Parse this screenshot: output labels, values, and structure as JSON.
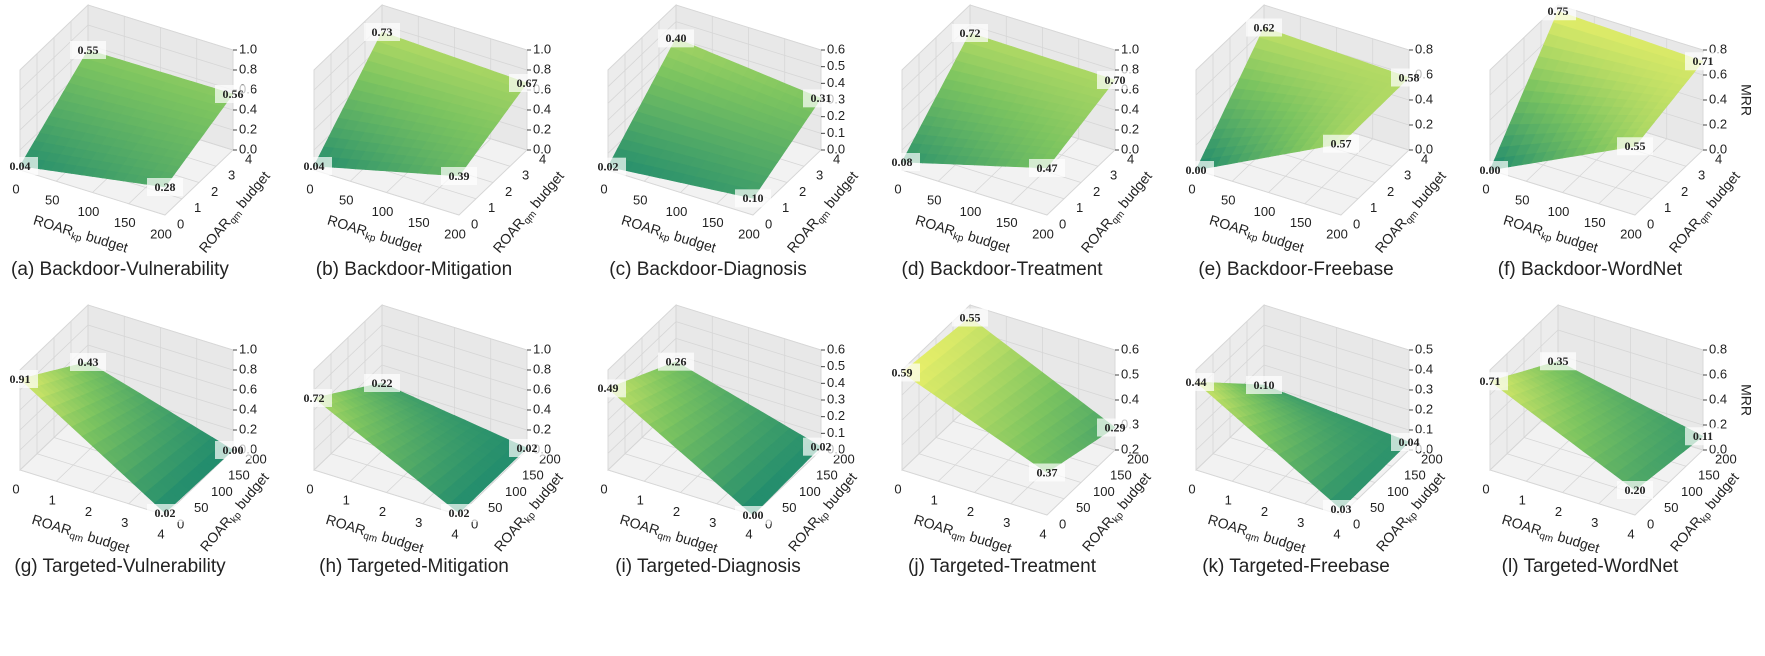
{
  "chart_data": [
    {
      "type": "surface",
      "caption": "(a) Backdoor-Vulnerability",
      "x_label": {
        "main": "ROAR",
        "sub": "kp",
        "rest": "budget"
      },
      "y_label": {
        "main": "ROAR",
        "sub": "qm",
        "rest": "budget"
      },
      "xlim": [
        0,
        200
      ],
      "xticks": [
        0,
        50,
        100,
        150,
        200
      ],
      "ylim": [
        0,
        4
      ],
      "yticks": [
        0,
        1,
        2,
        3,
        4
      ],
      "zlim": [
        0,
        1
      ],
      "zticks": [
        {
          "value": 0,
          "label": "0.0"
        },
        {
          "value": 0.2,
          "label": "0.2"
        },
        {
          "value": 0.4,
          "label": "0.4"
        },
        {
          "value": 0.6,
          "label": "0.6"
        },
        {
          "value": 0.8,
          "label": "0.8"
        },
        {
          "value": 1,
          "label": "1.0"
        }
      ],
      "values": [
        0.04,
        0.55,
        0.56,
        0.28
      ],
      "value_labels": [
        "0.04",
        "0.55",
        "0.56",
        "0.28"
      ]
    },
    {
      "type": "surface",
      "caption": "(b) Backdoor-Mitigation",
      "x_label": {
        "main": "ROAR",
        "sub": "kp",
        "rest": "budget"
      },
      "y_label": {
        "main": "ROAR",
        "sub": "qm",
        "rest": "budget"
      },
      "xlim": [
        0,
        200
      ],
      "xticks": [
        0,
        50,
        100,
        150,
        200
      ],
      "ylim": [
        0,
        4
      ],
      "yticks": [
        0,
        1,
        2,
        3,
        4
      ],
      "zlim": [
        0,
        1
      ],
      "zticks": [
        {
          "value": 0,
          "label": "0.0"
        },
        {
          "value": 0.2,
          "label": "0.2"
        },
        {
          "value": 0.4,
          "label": "0.4"
        },
        {
          "value": 0.6,
          "label": "0.6"
        },
        {
          "value": 0.8,
          "label": "0.8"
        },
        {
          "value": 1,
          "label": "1.0"
        }
      ],
      "values": [
        0.04,
        0.73,
        0.67,
        0.39
      ],
      "value_labels": [
        "0.04",
        "0.73",
        "0.67",
        "0.39"
      ]
    },
    {
      "type": "surface",
      "caption": "(c) Backdoor-Diagnosis",
      "x_label": {
        "main": "ROAR",
        "sub": "kp",
        "rest": "budget"
      },
      "y_label": {
        "main": "ROAR",
        "sub": "qm",
        "rest": "budget"
      },
      "xlim": [
        0,
        200
      ],
      "xticks": [
        0,
        50,
        100,
        150,
        200
      ],
      "ylim": [
        0,
        4
      ],
      "yticks": [
        0,
        1,
        2,
        3,
        4
      ],
      "zlim": [
        0,
        0.6
      ],
      "zticks": [
        {
          "value": 0,
          "label": "0.0"
        },
        {
          "value": 0.1,
          "label": "0.1"
        },
        {
          "value": 0.2,
          "label": "0.2"
        },
        {
          "value": 0.3,
          "label": "0.3"
        },
        {
          "value": 0.4,
          "label": "0.4"
        },
        {
          "value": 0.5,
          "label": "0.5"
        },
        {
          "value": 0.6,
          "label": "0.6"
        }
      ],
      "values": [
        0.02,
        0.4,
        0.31,
        0.1
      ],
      "value_labels": [
        "0.02",
        "0.40",
        "0.31",
        "0.10"
      ]
    },
    {
      "type": "surface",
      "caption": "(d) Backdoor-Treatment",
      "x_label": {
        "main": "ROAR",
        "sub": "kp",
        "rest": "budget"
      },
      "y_label": {
        "main": "ROAR",
        "sub": "qm",
        "rest": "budget"
      },
      "xlim": [
        0,
        200
      ],
      "xticks": [
        0,
        50,
        100,
        150,
        200
      ],
      "ylim": [
        0,
        4
      ],
      "yticks": [
        0,
        1,
        2,
        3,
        4
      ],
      "zlim": [
        0,
        1
      ],
      "zticks": [
        {
          "value": 0,
          "label": "0.0"
        },
        {
          "value": 0.2,
          "label": "0.2"
        },
        {
          "value": 0.4,
          "label": "0.4"
        },
        {
          "value": 0.6,
          "label": "0.6"
        },
        {
          "value": 0.8,
          "label": "0.8"
        },
        {
          "value": 1,
          "label": "1.0"
        }
      ],
      "values": [
        0.08,
        0.72,
        0.7,
        0.47
      ],
      "value_labels": [
        "0.08",
        "0.72",
        "0.70",
        "0.47"
      ]
    },
    {
      "type": "surface",
      "caption": "(e) Backdoor-Freebase",
      "x_label": {
        "main": "ROAR",
        "sub": "kp",
        "rest": "budget"
      },
      "y_label": {
        "main": "ROAR",
        "sub": "qm",
        "rest": "budget"
      },
      "xlim": [
        0,
        200
      ],
      "xticks": [
        0,
        50,
        100,
        150,
        200
      ],
      "ylim": [
        0,
        4
      ],
      "yticks": [
        0,
        1,
        2,
        3,
        4
      ],
      "zlim": [
        0,
        0.8
      ],
      "zticks": [
        {
          "value": 0,
          "label": "0.0"
        },
        {
          "value": 0.2,
          "label": "0.2"
        },
        {
          "value": 0.4,
          "label": "0.4"
        },
        {
          "value": 0.6,
          "label": "0.6"
        },
        {
          "value": 0.8,
          "label": "0.8"
        }
      ],
      "values": [
        0.0,
        0.62,
        0.58,
        0.57
      ],
      "value_labels": [
        "0.00",
        "0.62",
        "0.58",
        "0.57"
      ]
    },
    {
      "type": "surface",
      "caption": "(f) Backdoor-WordNet",
      "x_label": {
        "main": "ROAR",
        "sub": "kp",
        "rest": "budget"
      },
      "y_label": {
        "main": "ROAR",
        "sub": "qm",
        "rest": "budget"
      },
      "z_label": "MRR",
      "xlim": [
        0,
        200
      ],
      "xticks": [
        0,
        50,
        100,
        150,
        200
      ],
      "ylim": [
        0,
        4
      ],
      "yticks": [
        0,
        1,
        2,
        3,
        4
      ],
      "zlim": [
        0,
        0.8
      ],
      "zticks": [
        {
          "value": 0,
          "label": "0.0"
        },
        {
          "value": 0.2,
          "label": "0.2"
        },
        {
          "value": 0.4,
          "label": "0.4"
        },
        {
          "value": 0.6,
          "label": "0.6"
        },
        {
          "value": 0.8,
          "label": "0.8"
        }
      ],
      "values": [
        0.0,
        0.75,
        0.71,
        0.55
      ],
      "value_labels": [
        "0.00",
        "0.75",
        "0.71",
        "0.55"
      ]
    },
    {
      "type": "surface",
      "caption": "(g) Targeted-Vulnerability",
      "x_label": {
        "main": "ROAR",
        "sub": "qm",
        "rest": "budget"
      },
      "y_label": {
        "main": "ROAR",
        "sub": "kp",
        "rest": "budget"
      },
      "xlim": [
        0,
        4
      ],
      "xticks": [
        0,
        1,
        2,
        3,
        4
      ],
      "ylim": [
        0,
        200
      ],
      "yticks": [
        0,
        50,
        100,
        150,
        200
      ],
      "zlim": [
        0,
        1
      ],
      "zticks": [
        {
          "value": 0,
          "label": "0.0"
        },
        {
          "value": 0.2,
          "label": "0.2"
        },
        {
          "value": 0.4,
          "label": "0.4"
        },
        {
          "value": 0.6,
          "label": "0.6"
        },
        {
          "value": 0.8,
          "label": "0.8"
        },
        {
          "value": 1,
          "label": "1.0"
        }
      ],
      "values": [
        0.91,
        0.43,
        0.0,
        0.02
      ],
      "value_labels": [
        "0.91",
        "0.43",
        "0.00",
        "0.02"
      ]
    },
    {
      "type": "surface",
      "caption": "(h) Targeted-Mitigation",
      "x_label": {
        "main": "ROAR",
        "sub": "qm",
        "rest": "budget"
      },
      "y_label": {
        "main": "ROAR",
        "sub": "kp",
        "rest": "budget"
      },
      "xlim": [
        0,
        4
      ],
      "xticks": [
        0,
        1,
        2,
        3,
        4
      ],
      "ylim": [
        0,
        200
      ],
      "yticks": [
        0,
        50,
        100,
        150,
        200
      ],
      "zlim": [
        0,
        1
      ],
      "zticks": [
        {
          "value": 0,
          "label": "0.0"
        },
        {
          "value": 0.2,
          "label": "0.2"
        },
        {
          "value": 0.4,
          "label": "0.4"
        },
        {
          "value": 0.6,
          "label": "0.6"
        },
        {
          "value": 0.8,
          "label": "0.8"
        },
        {
          "value": 1,
          "label": "1.0"
        }
      ],
      "values": [
        0.72,
        0.22,
        0.02,
        0.02
      ],
      "value_labels": [
        "0.72",
        "0.22",
        "0.02",
        "0.02"
      ]
    },
    {
      "type": "surface",
      "caption": "(i) Targeted-Diagnosis",
      "x_label": {
        "main": "ROAR",
        "sub": "qm",
        "rest": "budget"
      },
      "y_label": {
        "main": "ROAR",
        "sub": "kp",
        "rest": "budget"
      },
      "xlim": [
        0,
        4
      ],
      "xticks": [
        0,
        1,
        2,
        3,
        4
      ],
      "ylim": [
        0,
        200
      ],
      "yticks": [
        0,
        50,
        100,
        150,
        200
      ],
      "zlim": [
        0,
        0.6
      ],
      "zticks": [
        {
          "value": 0,
          "label": "0.0"
        },
        {
          "value": 0.1,
          "label": "0.1"
        },
        {
          "value": 0.2,
          "label": "0.2"
        },
        {
          "value": 0.3,
          "label": "0.3"
        },
        {
          "value": 0.4,
          "label": "0.4"
        },
        {
          "value": 0.5,
          "label": "0.5"
        },
        {
          "value": 0.6,
          "label": "0.6"
        }
      ],
      "values": [
        0.49,
        0.26,
        0.02,
        0.0
      ],
      "value_labels": [
        "0.49",
        "0.26",
        "0.02",
        "0.00"
      ]
    },
    {
      "type": "surface",
      "caption": "(j) Targeted-Treatment",
      "x_label": {
        "main": "ROAR",
        "sub": "qm",
        "rest": "budget"
      },
      "y_label": {
        "main": "ROAR",
        "sub": "kp",
        "rest": "budget"
      },
      "xlim": [
        0,
        4
      ],
      "xticks": [
        0,
        1,
        2,
        3,
        4
      ],
      "ylim": [
        0,
        200
      ],
      "yticks": [
        0,
        50,
        100,
        150,
        200
      ],
      "zlim": [
        0.2,
        0.6
      ],
      "zticks": [
        {
          "value": 0.2,
          "label": "0.2"
        },
        {
          "value": 0.3,
          "label": "0.3"
        },
        {
          "value": 0.4,
          "label": "0.4"
        },
        {
          "value": 0.5,
          "label": "0.5"
        },
        {
          "value": 0.6,
          "label": "0.6"
        }
      ],
      "values": [
        0.59,
        0.55,
        0.29,
        0.37
      ],
      "value_labels": [
        "0.59",
        "0.55",
        "0.29",
        "0.37"
      ]
    },
    {
      "type": "surface",
      "caption": "(k) Targeted-Freebase",
      "x_label": {
        "main": "ROAR",
        "sub": "qm",
        "rest": "budget"
      },
      "y_label": {
        "main": "ROAR",
        "sub": "kp",
        "rest": "budget"
      },
      "xlim": [
        0,
        4
      ],
      "xticks": [
        0,
        1,
        2,
        3,
        4
      ],
      "ylim": [
        0,
        200
      ],
      "yticks": [
        0,
        50,
        100,
        150,
        200
      ],
      "zlim": [
        0,
        0.5
      ],
      "zticks": [
        {
          "value": 0,
          "label": "0.0"
        },
        {
          "value": 0.1,
          "label": "0.1"
        },
        {
          "value": 0.2,
          "label": "0.2"
        },
        {
          "value": 0.3,
          "label": "0.3"
        },
        {
          "value": 0.4,
          "label": "0.4"
        },
        {
          "value": 0.5,
          "label": "0.5"
        }
      ],
      "values": [
        0.44,
        0.1,
        0.04,
        0.03
      ],
      "value_labels": [
        "0.44",
        "0.10",
        "0.04",
        "0.03"
      ]
    },
    {
      "type": "surface",
      "caption": "(l) Targeted-WordNet",
      "x_label": {
        "main": "ROAR",
        "sub": "qm",
        "rest": "budget"
      },
      "y_label": {
        "main": "ROAR",
        "sub": "kp",
        "rest": "budget"
      },
      "z_label": "MRR",
      "xlim": [
        0,
        4
      ],
      "xticks": [
        0,
        1,
        2,
        3,
        4
      ],
      "ylim": [
        0,
        200
      ],
      "yticks": [
        0,
        50,
        100,
        150,
        200
      ],
      "zlim": [
        0,
        0.8
      ],
      "zticks": [
        {
          "value": 0,
          "label": "0.0"
        },
        {
          "value": 0.2,
          "label": "0.2"
        },
        {
          "value": 0.4,
          "label": "0.4"
        },
        {
          "value": 0.6,
          "label": "0.6"
        },
        {
          "value": 0.8,
          "label": "0.8"
        }
      ],
      "values": [
        0.71,
        0.35,
        0.11,
        0.2
      ],
      "value_labels": [
        "0.71",
        "0.35",
        "0.11",
        "0.20"
      ]
    }
  ]
}
